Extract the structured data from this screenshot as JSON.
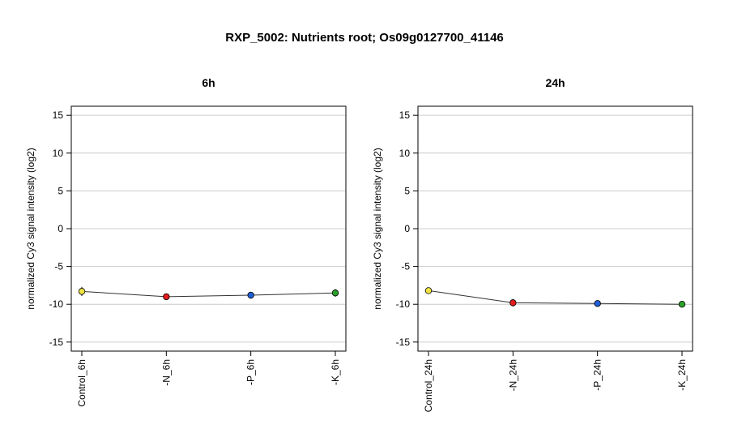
{
  "title": "RXP_5002: Nutrients root; Os09g0127700_41146",
  "chart_data": [
    {
      "type": "line",
      "title": "6h",
      "ylabel": "normalized Cy3 signal intensity (log2)",
      "categories": [
        "Control_6h",
        "-N_6h",
        "-P_6h",
        "-K_6h"
      ],
      "values": [
        -8.3,
        -9.0,
        -8.8,
        -8.5
      ],
      "errors": [
        0.6,
        0.2,
        0.45,
        0.5
      ],
      "point_colors": [
        "#f0e442",
        "#e41a1c",
        "#1f5fd6",
        "#2ca02c"
      ],
      "ylim": [
        -16.2,
        16.2
      ],
      "yticks": [
        -15,
        -10,
        -5,
        0,
        5,
        10,
        15
      ],
      "grid": true
    },
    {
      "type": "line",
      "title": "24h",
      "ylabel": "normalized Cy3 signal intensity (log2)",
      "categories": [
        "Control_24h",
        "-N_24h",
        "-P_24h",
        "-K_24h"
      ],
      "values": [
        -8.2,
        -9.8,
        -9.9,
        -10.0
      ],
      "errors": [
        0.3,
        0.5,
        0.2,
        0.2
      ],
      "point_colors": [
        "#f0e442",
        "#e41a1c",
        "#1f5fd6",
        "#2ca02c"
      ],
      "ylim": [
        -16.2,
        16.2
      ],
      "yticks": [
        -15,
        -10,
        -5,
        0,
        5,
        10,
        15
      ],
      "grid": true
    }
  ]
}
